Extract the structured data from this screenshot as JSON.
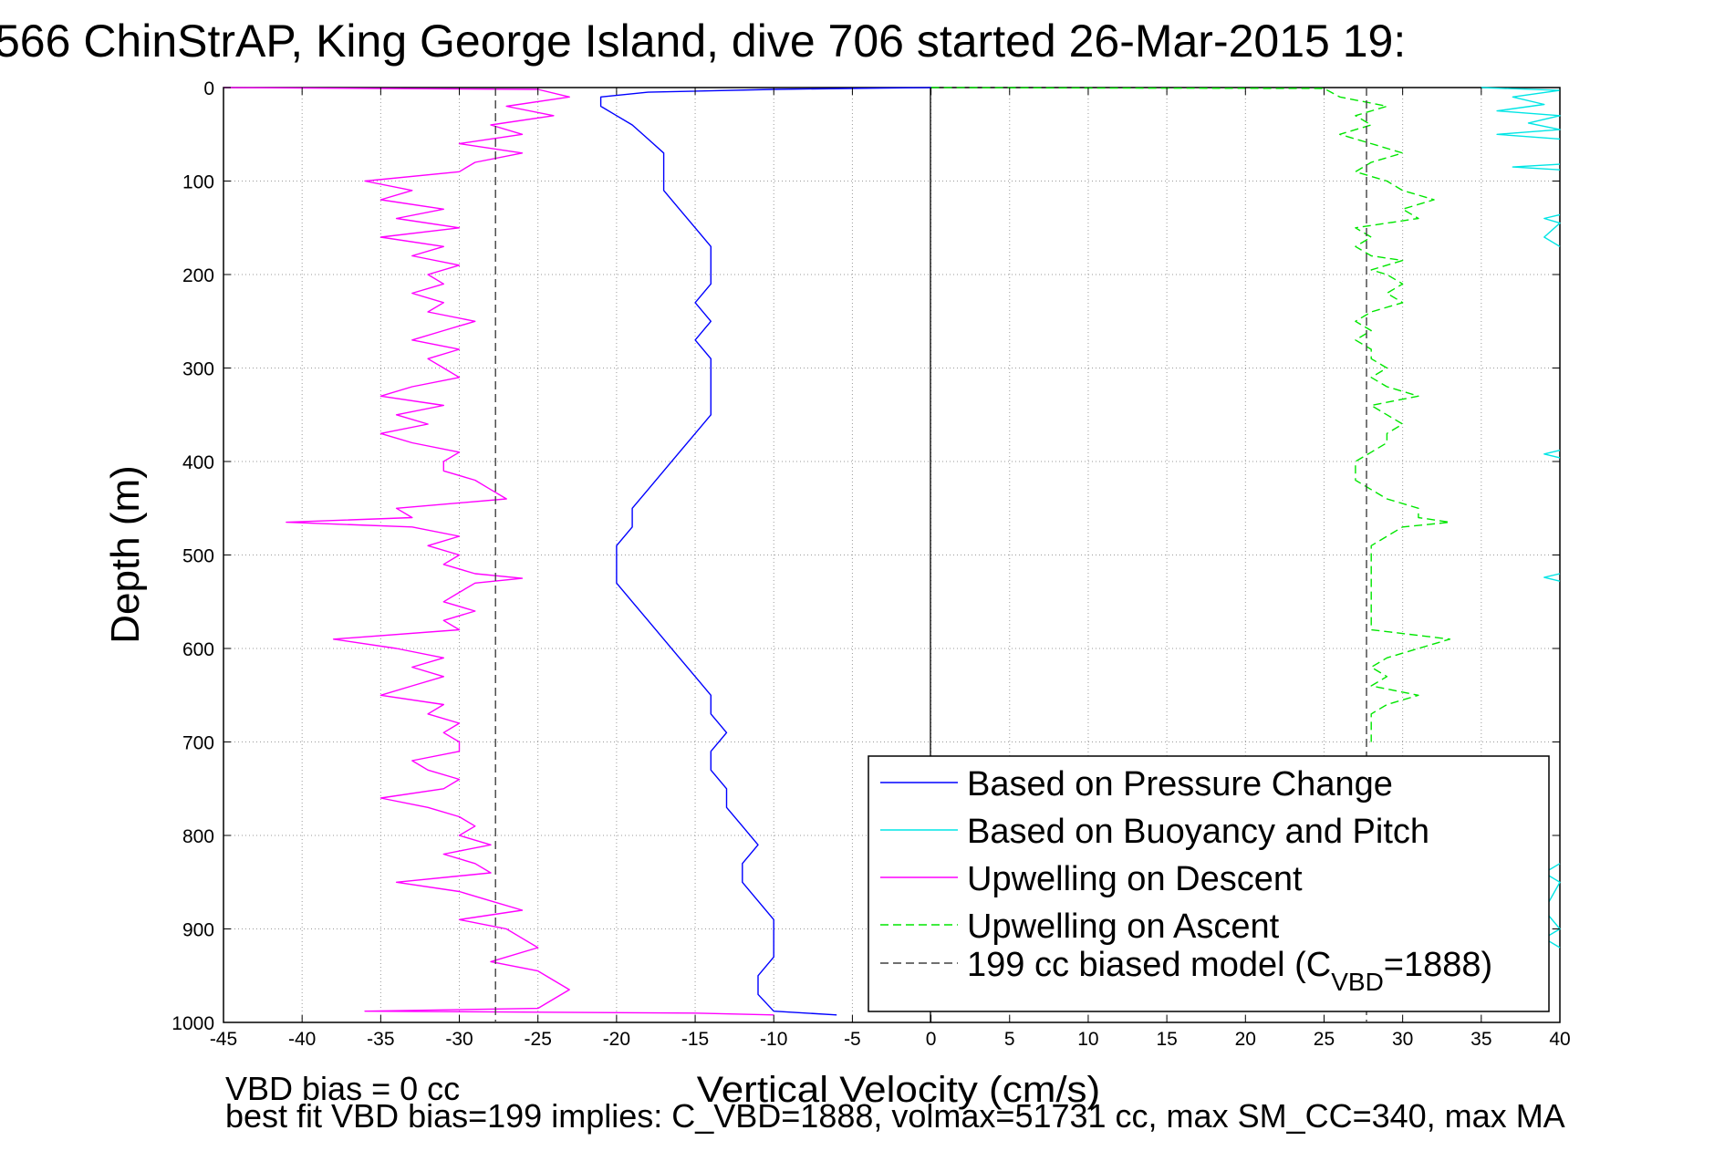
{
  "chart_data": {
    "type": "line",
    "title": "566 ChinStrAP, King George Island, dive 706 started 26-Mar-2015 19:",
    "xlabel": "Vertical Velocity (cm/s)",
    "ylabel": "Depth (m)",
    "xlim": [
      -45,
      40
    ],
    "ylim": [
      0,
      1000
    ],
    "y_reversed": true,
    "grid": true,
    "grid_style": "dotted",
    "legend_placement": "bottom-right",
    "x_ticks": [
      "-45",
      "-40",
      "-35",
      "-30",
      "-25",
      "-20",
      "-15",
      "-10",
      "-5",
      "0",
      "5",
      "10",
      "15",
      "20",
      "25",
      "30",
      "35",
      "40"
    ],
    "y_ticks": [
      "0",
      "100",
      "200",
      "300",
      "400",
      "500",
      "600",
      "700",
      "800",
      "900",
      "1000"
    ],
    "legend": {
      "pressure_label": "Based on Pressure Change",
      "buoyancy_label": "Based on Buoyancy and Pitch",
      "descent_label": "Upwelling on Descent",
      "ascent_label": "Upwelling on Ascent",
      "model_label_pre": "199 cc biased model (C",
      "model_label_sub": "VBD",
      "model_label_post": "=1888)"
    },
    "series": [
      {
        "name": "Based on Pressure Change",
        "color": "#0000ff",
        "style": "solid",
        "points": [
          [
            0,
            0
          ],
          [
            -3,
            0.5
          ],
          [
            -10,
            2
          ],
          [
            -18,
            5
          ],
          [
            -21,
            10
          ],
          [
            -21,
            20
          ],
          [
            -20,
            30
          ],
          [
            -19,
            40
          ],
          [
            -18,
            55
          ],
          [
            -17,
            70
          ],
          [
            -17,
            90
          ],
          [
            -17,
            110
          ],
          [
            -16,
            130
          ],
          [
            -15,
            150
          ],
          [
            -14,
            170
          ],
          [
            -14,
            190
          ],
          [
            -14,
            210
          ],
          [
            -15,
            230
          ],
          [
            -14,
            250
          ],
          [
            -15,
            270
          ],
          [
            -14,
            290
          ],
          [
            -14,
            310
          ],
          [
            -14,
            330
          ],
          [
            -14,
            350
          ],
          [
            -15,
            370
          ],
          [
            -16,
            390
          ],
          [
            -17,
            410
          ],
          [
            -18,
            430
          ],
          [
            -19,
            450
          ],
          [
            -19,
            470
          ],
          [
            -20,
            490
          ],
          [
            -20,
            510
          ],
          [
            -20,
            530
          ],
          [
            -19,
            550
          ],
          [
            -18,
            570
          ],
          [
            -17,
            590
          ],
          [
            -16,
            610
          ],
          [
            -15,
            630
          ],
          [
            -14,
            650
          ],
          [
            -14,
            670
          ],
          [
            -13,
            690
          ],
          [
            -14,
            710
          ],
          [
            -14,
            730
          ],
          [
            -13,
            750
          ],
          [
            -13,
            770
          ],
          [
            -12,
            790
          ],
          [
            -11,
            810
          ],
          [
            -12,
            830
          ],
          [
            -12,
            850
          ],
          [
            -11,
            870
          ],
          [
            -10,
            890
          ],
          [
            -10,
            910
          ],
          [
            -10,
            930
          ],
          [
            -11,
            950
          ],
          [
            -11,
            970
          ],
          [
            -10,
            988
          ],
          [
            -6,
            992
          ]
        ]
      },
      {
        "name": "Based on Buoyancy and Pitch",
        "color": "#00e5e5",
        "style": "solid",
        "points": [
          [
            35,
            0
          ],
          [
            40,
            3
          ],
          [
            37,
            10
          ],
          [
            39,
            18
          ],
          [
            36,
            25
          ],
          [
            40,
            30
          ],
          [
            38,
            38
          ],
          [
            40,
            45
          ],
          [
            36,
            50
          ],
          [
            40,
            55
          ]
        ]
      },
      {
        "name": "Based on Buoyancy and Pitch",
        "color": "#00e5e5",
        "style": "solid",
        "points": [
          [
            40,
            82
          ],
          [
            37,
            85
          ],
          [
            40,
            88
          ]
        ]
      },
      {
        "name": "Based on Buoyancy and Pitch",
        "color": "#00e5e5",
        "style": "solid",
        "points": [
          [
            40,
            136
          ],
          [
            39,
            140
          ],
          [
            40,
            145
          ],
          [
            39,
            160
          ],
          [
            40,
            170
          ]
        ]
      },
      {
        "name": "Based on Buoyancy and Pitch",
        "color": "#00e5e5",
        "style": "solid",
        "points": [
          [
            40,
            388
          ],
          [
            39,
            392
          ],
          [
            40,
            396
          ]
        ]
      },
      {
        "name": "Based on Buoyancy and Pitch",
        "color": "#00e5e5",
        "style": "solid",
        "points": [
          [
            40,
            520
          ],
          [
            39,
            524
          ],
          [
            40,
            528
          ]
        ]
      },
      {
        "name": "Based on Buoyancy and Pitch",
        "color": "#00e5e5",
        "style": "solid",
        "points": [
          [
            40,
            830
          ],
          [
            39,
            840
          ],
          [
            40,
            850
          ],
          [
            39,
            880
          ],
          [
            40,
            900
          ],
          [
            39,
            910
          ],
          [
            40,
            920
          ]
        ]
      },
      {
        "name": "Upwelling on Descent",
        "color": "#ff00ff",
        "style": "solid",
        "points": [
          [
            -45,
            0
          ],
          [
            -25,
            2
          ],
          [
            -23,
            10
          ],
          [
            -27,
            20
          ],
          [
            -24,
            30
          ],
          [
            -28,
            40
          ],
          [
            -26,
            50
          ],
          [
            -30,
            60
          ],
          [
            -26,
            70
          ],
          [
            -29,
            80
          ],
          [
            -30,
            90
          ],
          [
            -36,
            100
          ],
          [
            -33,
            110
          ],
          [
            -35,
            120
          ],
          [
            -31,
            130
          ],
          [
            -34,
            140
          ],
          [
            -30,
            150
          ],
          [
            -35,
            160
          ],
          [
            -31,
            170
          ],
          [
            -33,
            180
          ],
          [
            -30,
            190
          ],
          [
            -32,
            200
          ],
          [
            -31,
            210
          ],
          [
            -33,
            220
          ],
          [
            -31,
            230
          ],
          [
            -32,
            240
          ],
          [
            -29,
            250
          ],
          [
            -31,
            260
          ],
          [
            -33,
            270
          ],
          [
            -30,
            280
          ],
          [
            -32,
            290
          ],
          [
            -31,
            300
          ],
          [
            -30,
            310
          ],
          [
            -33,
            320
          ],
          [
            -35,
            330
          ],
          [
            -31,
            340
          ],
          [
            -34,
            350
          ],
          [
            -32,
            360
          ],
          [
            -35,
            370
          ],
          [
            -33,
            380
          ],
          [
            -30,
            390
          ],
          [
            -31,
            400
          ],
          [
            -31,
            410
          ],
          [
            -29,
            420
          ],
          [
            -28,
            430
          ],
          [
            -27,
            440
          ],
          [
            -34,
            450
          ],
          [
            -33,
            460
          ],
          [
            -41,
            465
          ],
          [
            -33,
            470
          ],
          [
            -30,
            480
          ],
          [
            -32,
            490
          ],
          [
            -30,
            500
          ],
          [
            -31,
            510
          ],
          [
            -29,
            520
          ],
          [
            -26,
            525
          ],
          [
            -29,
            530
          ],
          [
            -30,
            540
          ],
          [
            -31,
            550
          ],
          [
            -29,
            560
          ],
          [
            -31,
            570
          ],
          [
            -30,
            580
          ],
          [
            -38,
            590
          ],
          [
            -34,
            600
          ],
          [
            -31,
            610
          ],
          [
            -33,
            620
          ],
          [
            -31,
            630
          ],
          [
            -33,
            640
          ],
          [
            -35,
            650
          ],
          [
            -31,
            660
          ],
          [
            -32,
            670
          ],
          [
            -30,
            680
          ],
          [
            -31,
            690
          ],
          [
            -30,
            700
          ],
          [
            -30,
            710
          ],
          [
            -33,
            720
          ],
          [
            -32,
            730
          ],
          [
            -30,
            740
          ],
          [
            -31,
            750
          ],
          [
            -35,
            760
          ],
          [
            -32,
            770
          ],
          [
            -30,
            780
          ],
          [
            -29,
            790
          ],
          [
            -30,
            800
          ],
          [
            -28,
            810
          ],
          [
            -31,
            820
          ],
          [
            -29,
            830
          ],
          [
            -28,
            840
          ],
          [
            -34,
            850
          ],
          [
            -30,
            860
          ],
          [
            -28,
            870
          ],
          [
            -26,
            880
          ],
          [
            -30,
            890
          ],
          [
            -27,
            900
          ],
          [
            -26,
            910
          ],
          [
            -25,
            920
          ],
          [
            -28,
            935
          ],
          [
            -25,
            945
          ],
          [
            -24,
            955
          ],
          [
            -23,
            965
          ],
          [
            -24,
            975
          ],
          [
            -25,
            985
          ],
          [
            -36,
            988
          ],
          [
            -15,
            990
          ],
          [
            -10,
            992
          ]
        ]
      },
      {
        "name": "Upwelling on Ascent",
        "color": "#00e600",
        "style": "dashed",
        "points": [
          [
            0,
            0
          ],
          [
            10,
            0.5
          ],
          [
            25,
            1
          ],
          [
            26,
            10
          ],
          [
            29,
            20
          ],
          [
            27,
            30
          ],
          [
            28,
            40
          ],
          [
            26,
            50
          ],
          [
            28,
            60
          ],
          [
            30,
            70
          ],
          [
            28,
            80
          ],
          [
            27,
            90
          ],
          [
            29,
            100
          ],
          [
            30,
            110
          ],
          [
            32,
            120
          ],
          [
            30,
            130
          ],
          [
            31,
            140
          ],
          [
            27,
            150
          ],
          [
            28,
            160
          ],
          [
            27,
            170
          ],
          [
            28,
            180
          ],
          [
            30,
            185
          ],
          [
            28,
            195
          ],
          [
            29,
            200
          ],
          [
            30,
            210
          ],
          [
            29,
            220
          ],
          [
            30,
            230
          ],
          [
            28,
            240
          ],
          [
            27,
            250
          ],
          [
            28,
            260
          ],
          [
            27,
            270
          ],
          [
            28,
            280
          ],
          [
            28,
            290
          ],
          [
            29,
            300
          ],
          [
            28,
            310
          ],
          [
            29,
            320
          ],
          [
            31,
            330
          ],
          [
            28,
            340
          ],
          [
            29,
            350
          ],
          [
            30,
            360
          ],
          [
            29,
            370
          ],
          [
            29,
            380
          ],
          [
            28,
            390
          ],
          [
            27,
            400
          ],
          [
            27,
            410
          ],
          [
            27,
            420
          ],
          [
            28,
            430
          ],
          [
            29,
            440
          ],
          [
            31,
            450
          ],
          [
            31,
            460
          ],
          [
            33,
            465
          ],
          [
            30,
            470
          ],
          [
            29,
            480
          ],
          [
            28,
            490
          ],
          [
            28,
            500
          ],
          [
            28,
            510
          ],
          [
            28,
            520
          ],
          [
            28,
            530
          ],
          [
            28,
            540
          ],
          [
            28,
            550
          ],
          [
            28,
            560
          ],
          [
            28,
            570
          ],
          [
            28,
            580
          ],
          [
            33,
            590
          ],
          [
            31,
            600
          ],
          [
            29,
            610
          ],
          [
            28,
            620
          ],
          [
            29,
            630
          ],
          [
            28,
            640
          ],
          [
            31,
            650
          ],
          [
            29,
            660
          ],
          [
            28,
            670
          ],
          [
            28,
            680
          ],
          [
            28,
            690
          ],
          [
            28,
            700
          ]
        ]
      },
      {
        "name": "199 cc biased model",
        "color": "#404040",
        "style": "dashed",
        "points": [
          [
            -27.7,
            0
          ],
          [
            -27.7,
            1000
          ]
        ]
      },
      {
        "name": "199 cc biased model",
        "color": "#404040",
        "style": "dashed",
        "points": [
          [
            27.7,
            0
          ],
          [
            27.7,
            1000
          ]
        ]
      }
    ]
  },
  "footer": {
    "line1": "VBD bias = 0 cc",
    "line2": "best fit VBD bias=199 implies: C_VBD=1888, volmax=51731 cc, max SM_CC=340, max MA"
  }
}
